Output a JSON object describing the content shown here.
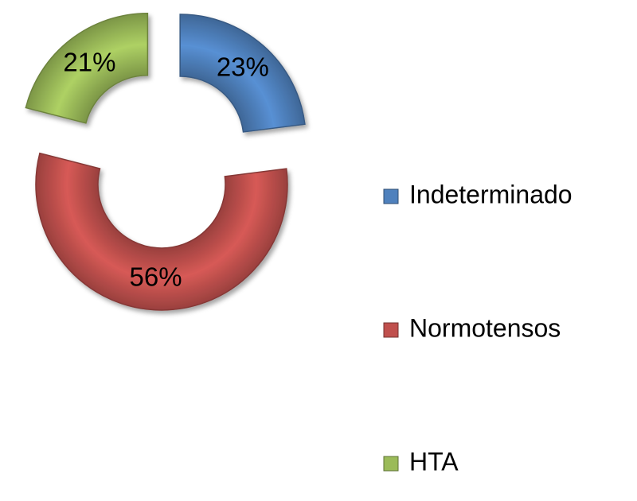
{
  "chart_data": {
    "type": "doughnut",
    "categories": [
      "Indeterminado",
      "Normotensos",
      "HTA"
    ],
    "values": [
      23,
      56,
      21
    ],
    "value_labels": [
      "23%",
      "56%",
      "21%"
    ],
    "colors": [
      "#4f81bd",
      "#c0504d",
      "#9bbb59"
    ],
    "legend": "right"
  }
}
